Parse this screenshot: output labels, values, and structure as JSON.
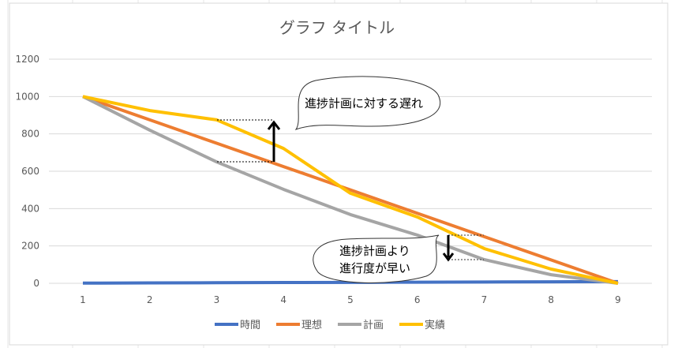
{
  "chart_data": {
    "type": "line",
    "title": "グラフ タイトル",
    "categories": [
      "1",
      "2",
      "3",
      "4",
      "5",
      "6",
      "7",
      "8",
      "9"
    ],
    "ylim": [
      0,
      1200
    ],
    "yticks": [
      0,
      200,
      400,
      600,
      800,
      1000,
      1200
    ],
    "grid": true,
    "legend": "bottom",
    "series": [
      {
        "name": "時間",
        "color": "#4472C4",
        "values": [
          1,
          2,
          3,
          4,
          5,
          6,
          7,
          8,
          9
        ]
      },
      {
        "name": "理想",
        "color": "#ED7D31",
        "values": [
          1000,
          875,
          750,
          625,
          500,
          375,
          250,
          125,
          0
        ]
      },
      {
        "name": "計画",
        "color": "#A5A5A5",
        "values": [
          1000,
          820,
          650,
          503,
          368,
          258,
          127,
          46,
          0
        ]
      },
      {
        "name": "実績",
        "color": "#FFC000",
        "values": [
          1000,
          925,
          875,
          722,
          482,
          355,
          186,
          76,
          0
        ]
      }
    ],
    "annotations": [
      {
        "text": "進捗計画に対する遅れ"
      },
      {
        "lines": [
          "進捗計画より",
          "進行度が早い"
        ]
      }
    ]
  }
}
